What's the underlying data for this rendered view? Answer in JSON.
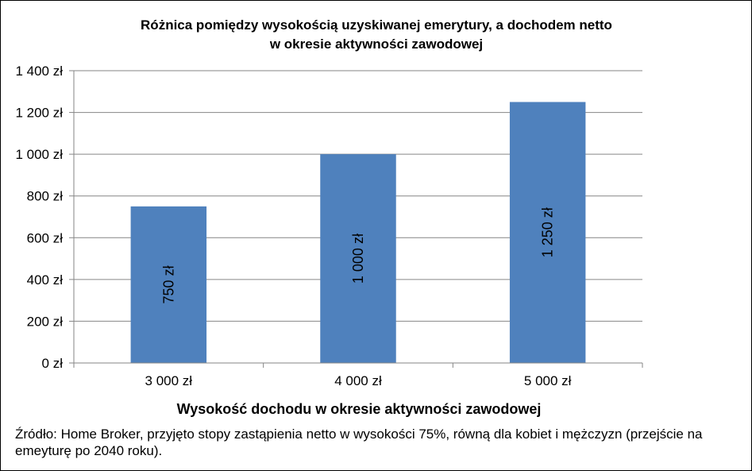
{
  "chart_data": {
    "type": "bar",
    "title_lines": [
      "Różnica pomiędzy wysokością uzyskiwanej emerytury, a dochodem netto",
      "w okresie aktywności zawodowej"
    ],
    "categories": [
      "3 000 zł",
      "4 000 zł",
      "5 000 zł"
    ],
    "values": [
      750,
      1000,
      1250
    ],
    "data_labels": [
      "750 zł",
      "1 000 zł",
      "1 250 zł"
    ],
    "xlabel": "Wysokość dochodu w okresie aktywności zawodowej",
    "ylabel": "",
    "ylim": [
      0,
      1400
    ],
    "y_ticks": [
      0,
      200,
      400,
      600,
      800,
      1000,
      1200,
      1400
    ],
    "y_tick_labels": [
      "0 zł",
      "200 zł",
      "400 zł",
      "600 zł",
      "800 zł",
      "1 000 zł",
      "1 200 zł",
      "1 400 zł"
    ],
    "grid": true,
    "bar_color": "#4F81BD",
    "grid_color": "#868686"
  },
  "source_note": "Źródło: Home Broker, przyjęto stopy zastąpienia netto w wysokości 75%, równą dla kobiet i mężczyzn  (przejście na emeyturę po 2040 roku)."
}
